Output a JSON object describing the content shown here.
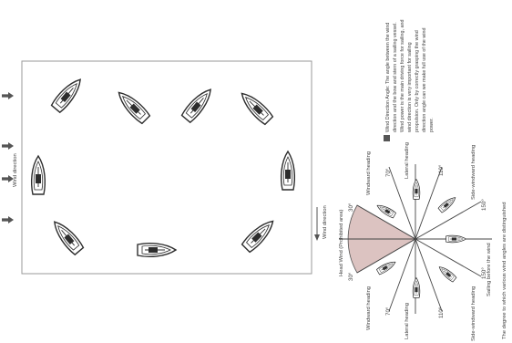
{
  "left_panel": {
    "wind_label": "Wind direction"
  },
  "right_panel": {
    "wind_label": "Wind direction",
    "head_wind_label": "Head Wind (Prohibited area)",
    "headings": {
      "windward_top": "Windward heading",
      "lateral_top": "Lateral heading",
      "side_windward_top": "Side-windward heading",
      "sailing_before_wind": "Sailing before the wind",
      "side_windward_bottom": "Side-windward heading",
      "lateral_bottom": "Lateral heading",
      "windward_bottom": "Windward heading"
    },
    "angles": {
      "a30_top": "30°",
      "a30_bottom": "30°",
      "a70_top": "70°",
      "a70_bottom": "70°",
      "a110_top": "110°",
      "a110_bottom": "110°",
      "a150_top": "150°",
      "a150_bottom": "150°"
    },
    "description_lines": [
      "Wind Direction Angle: The angle between the wind",
      "direction and the bow and stern of a sailing vessel.",
      "Wind power is the main driving force for sailing, and",
      "wind direction is very important for sailing",
      "propulsion. Only by correctly grasping the wind",
      "direction angle can we make full use of the wind",
      "power."
    ],
    "caption": "The degree to which various wind angles are distinguished"
  },
  "colors": {
    "frame": "#9a9a9a",
    "arrow": "#555555",
    "sector_fill": "#dcc3c1",
    "legend_square": "#555555"
  }
}
